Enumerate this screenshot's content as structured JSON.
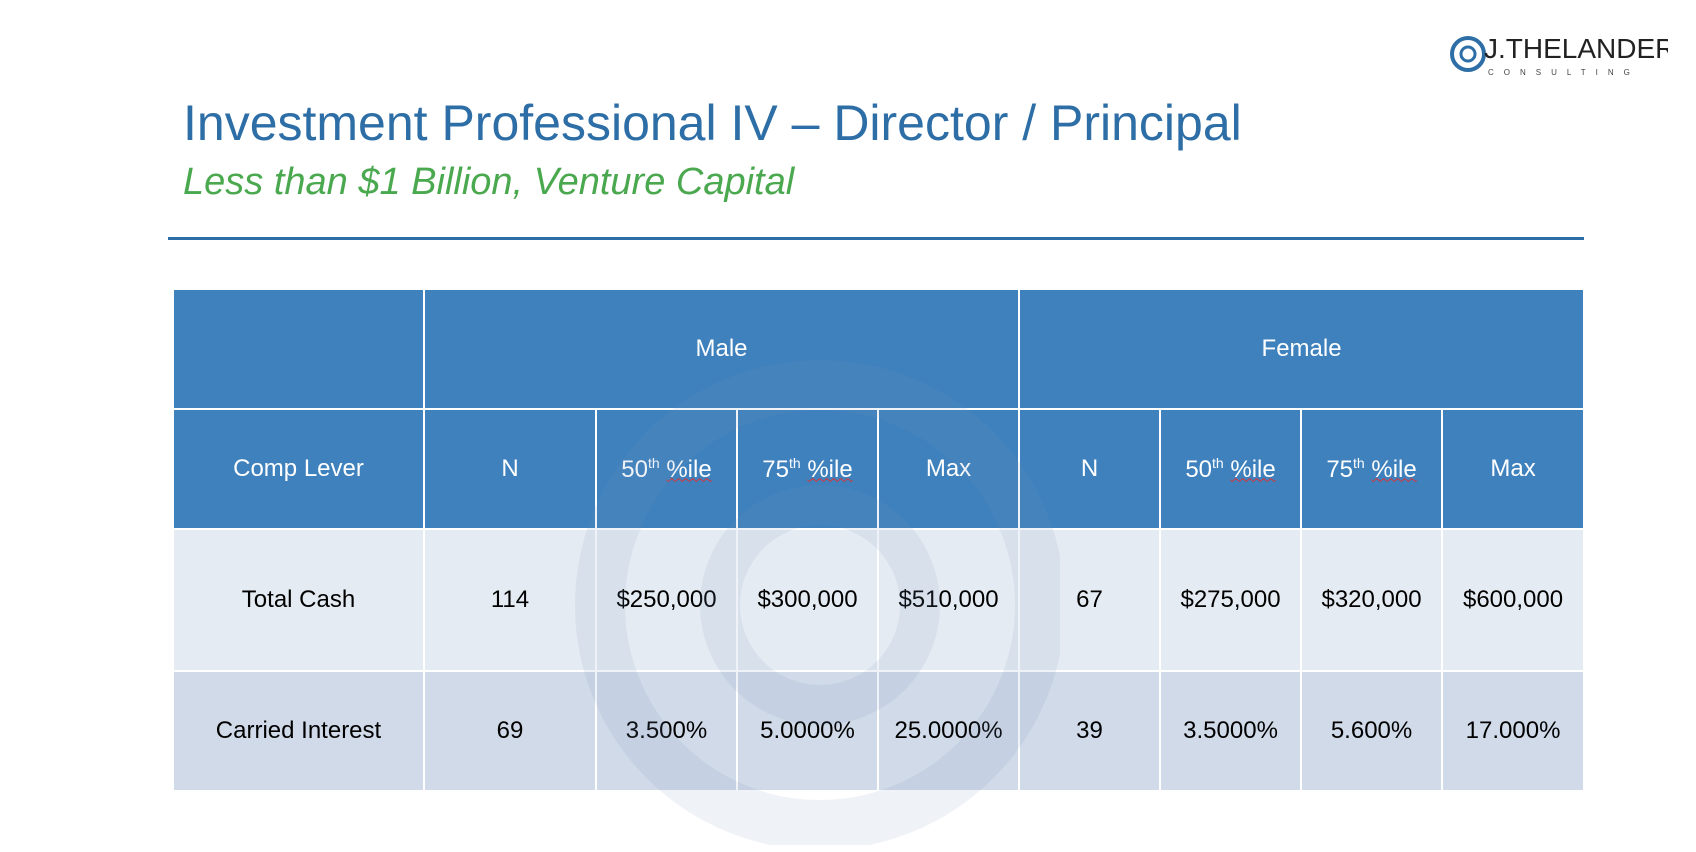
{
  "logo": {
    "name": "J.THELANDER",
    "tagline": "CONSULTING"
  },
  "header": {
    "title": "Investment Professional IV – Director / Principal",
    "subtitle": "Less than $1 Billion, Venture Capital"
  },
  "table": {
    "groups": [
      "Male",
      "Female"
    ],
    "columns": [
      "Comp Lever",
      "N",
      {
        "number": "50",
        "suffix": "th",
        "label": "%ile"
      },
      {
        "number": "75",
        "suffix": "th",
        "label": "%ile"
      },
      "Max",
      "N",
      {
        "number": "50",
        "suffix": "th",
        "label": "%ile"
      },
      {
        "number": "75",
        "suffix": "th",
        "label": "%ile"
      },
      "Max"
    ],
    "rows": [
      [
        "Total Cash",
        "114",
        "$250,000",
        "$300,000",
        "$510,000",
        "67",
        "$275,000",
        "$320,000",
        "$600,000"
      ],
      [
        "Carried Interest",
        "69",
        "3.500%",
        "5.0000%",
        "25.0000%",
        "39",
        "3.5000%",
        "5.600%",
        "17.000%"
      ]
    ]
  }
}
